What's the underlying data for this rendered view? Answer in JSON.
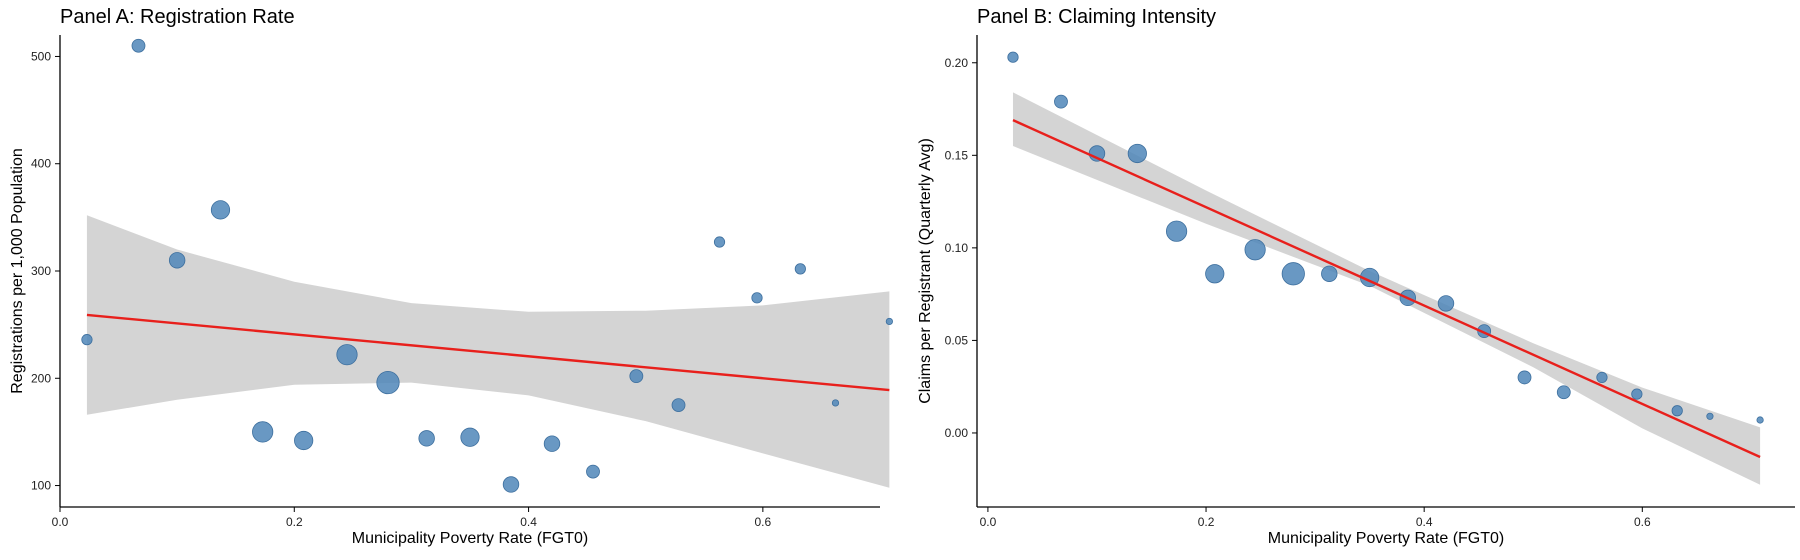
{
  "chart_data": [
    {
      "type": "scatter",
      "title": "Panel A: Registration Rate",
      "xlabel": "Municipality Poverty Rate (FGT0)",
      "ylabel": "Registrations per 1,000 Population",
      "xlim": [
        0.0,
        0.7
      ],
      "ylim": [
        80,
        520
      ],
      "xticks": [
        0.0,
        0.2,
        0.4,
        0.6
      ],
      "xtick_labels": [
        "0.0",
        "0.2",
        "0.4",
        "0.6"
      ],
      "yticks": [
        100,
        200,
        300,
        400,
        500
      ],
      "ytick_labels": [
        "100",
        "200",
        "300",
        "400",
        "500"
      ],
      "grid": false,
      "colors": {
        "points": "#4f86b8",
        "fit": "#e8201c",
        "band": "#d4d4d4"
      },
      "points": [
        {
          "x": 0.023,
          "y": 236,
          "size": 2
        },
        {
          "x": 0.067,
          "y": 510,
          "size": 3
        },
        {
          "x": 0.1,
          "y": 310,
          "size": 4
        },
        {
          "x": 0.137,
          "y": 357,
          "size": 5
        },
        {
          "x": 0.173,
          "y": 150,
          "size": 6
        },
        {
          "x": 0.208,
          "y": 142,
          "size": 5
        },
        {
          "x": 0.245,
          "y": 222,
          "size": 6
        },
        {
          "x": 0.28,
          "y": 196,
          "size": 7
        },
        {
          "x": 0.313,
          "y": 144,
          "size": 4
        },
        {
          "x": 0.35,
          "y": 145,
          "size": 5
        },
        {
          "x": 0.385,
          "y": 101,
          "size": 4
        },
        {
          "x": 0.42,
          "y": 139,
          "size": 4
        },
        {
          "x": 0.455,
          "y": 113,
          "size": 3
        },
        {
          "x": 0.492,
          "y": 202,
          "size": 3
        },
        {
          "x": 0.528,
          "y": 175,
          "size": 3
        },
        {
          "x": 0.563,
          "y": 327,
          "size": 2
        },
        {
          "x": 0.595,
          "y": 275,
          "size": 2
        },
        {
          "x": 0.632,
          "y": 302,
          "size": 2
        },
        {
          "x": 0.662,
          "y": 177,
          "size": 1
        },
        {
          "x": 0.708,
          "y": 253,
          "size": 1
        }
      ],
      "fit": {
        "x": [
          0.023,
          0.708
        ],
        "y": [
          259,
          189
        ]
      },
      "confidence_band": {
        "x": [
          0.023,
          0.1,
          0.2,
          0.3,
          0.4,
          0.5,
          0.6,
          0.708
        ],
        "lower": [
          166,
          180,
          194,
          196,
          184,
          160,
          130,
          98
        ],
        "upper": [
          352,
          320,
          290,
          270,
          262,
          263,
          268,
          281
        ]
      }
    },
    {
      "type": "scatter",
      "title": "Panel B: Claiming Intensity",
      "xlabel": "Municipality Poverty Rate (FGT0)",
      "ylabel": "Claims per Registrant (Quarterly Avg)",
      "xlim": [
        -0.01,
        0.74
      ],
      "ylim": [
        -0.04,
        0.215
      ],
      "xticks": [
        0.0,
        0.2,
        0.4,
        0.6
      ],
      "xtick_labels": [
        "0.0",
        "0.2",
        "0.4",
        "0.6"
      ],
      "yticks": [
        0.0,
        0.05,
        0.1,
        0.15,
        0.2
      ],
      "ytick_labels": [
        "0.00",
        "0.05",
        "0.10",
        "0.15",
        "0.20"
      ],
      "grid": false,
      "colors": {
        "points": "#4f86b8",
        "fit": "#e8201c",
        "band": "#d4d4d4"
      },
      "points": [
        {
          "x": 0.023,
          "y": 0.203,
          "size": 2
        },
        {
          "x": 0.067,
          "y": 0.179,
          "size": 3
        },
        {
          "x": 0.1,
          "y": 0.151,
          "size": 4
        },
        {
          "x": 0.137,
          "y": 0.151,
          "size": 5
        },
        {
          "x": 0.173,
          "y": 0.109,
          "size": 6
        },
        {
          "x": 0.208,
          "y": 0.086,
          "size": 5
        },
        {
          "x": 0.245,
          "y": 0.099,
          "size": 6
        },
        {
          "x": 0.28,
          "y": 0.086,
          "size": 7
        },
        {
          "x": 0.313,
          "y": 0.086,
          "size": 4
        },
        {
          "x": 0.35,
          "y": 0.084,
          "size": 5
        },
        {
          "x": 0.385,
          "y": 0.073,
          "size": 4
        },
        {
          "x": 0.42,
          "y": 0.07,
          "size": 4
        },
        {
          "x": 0.455,
          "y": 0.055,
          "size": 3
        },
        {
          "x": 0.492,
          "y": 0.03,
          "size": 3
        },
        {
          "x": 0.528,
          "y": 0.022,
          "size": 3
        },
        {
          "x": 0.563,
          "y": 0.03,
          "size": 2
        },
        {
          "x": 0.595,
          "y": 0.021,
          "size": 2
        },
        {
          "x": 0.632,
          "y": 0.012,
          "size": 2
        },
        {
          "x": 0.662,
          "y": 0.009,
          "size": 1
        },
        {
          "x": 0.708,
          "y": 0.007,
          "size": 1
        }
      ],
      "fit": {
        "x": [
          0.023,
          0.708
        ],
        "y": [
          0.169,
          -0.013
        ]
      },
      "confidence_band": {
        "x": [
          0.023,
          0.2,
          0.35,
          0.5,
          0.6,
          0.708
        ],
        "lower": [
          0.155,
          0.113,
          0.0795,
          0.0355,
          0.0025,
          -0.028
        ],
        "upper": [
          0.184,
          0.131,
          0.0875,
          0.0485,
          0.0245,
          0.003
        ]
      }
    }
  ]
}
